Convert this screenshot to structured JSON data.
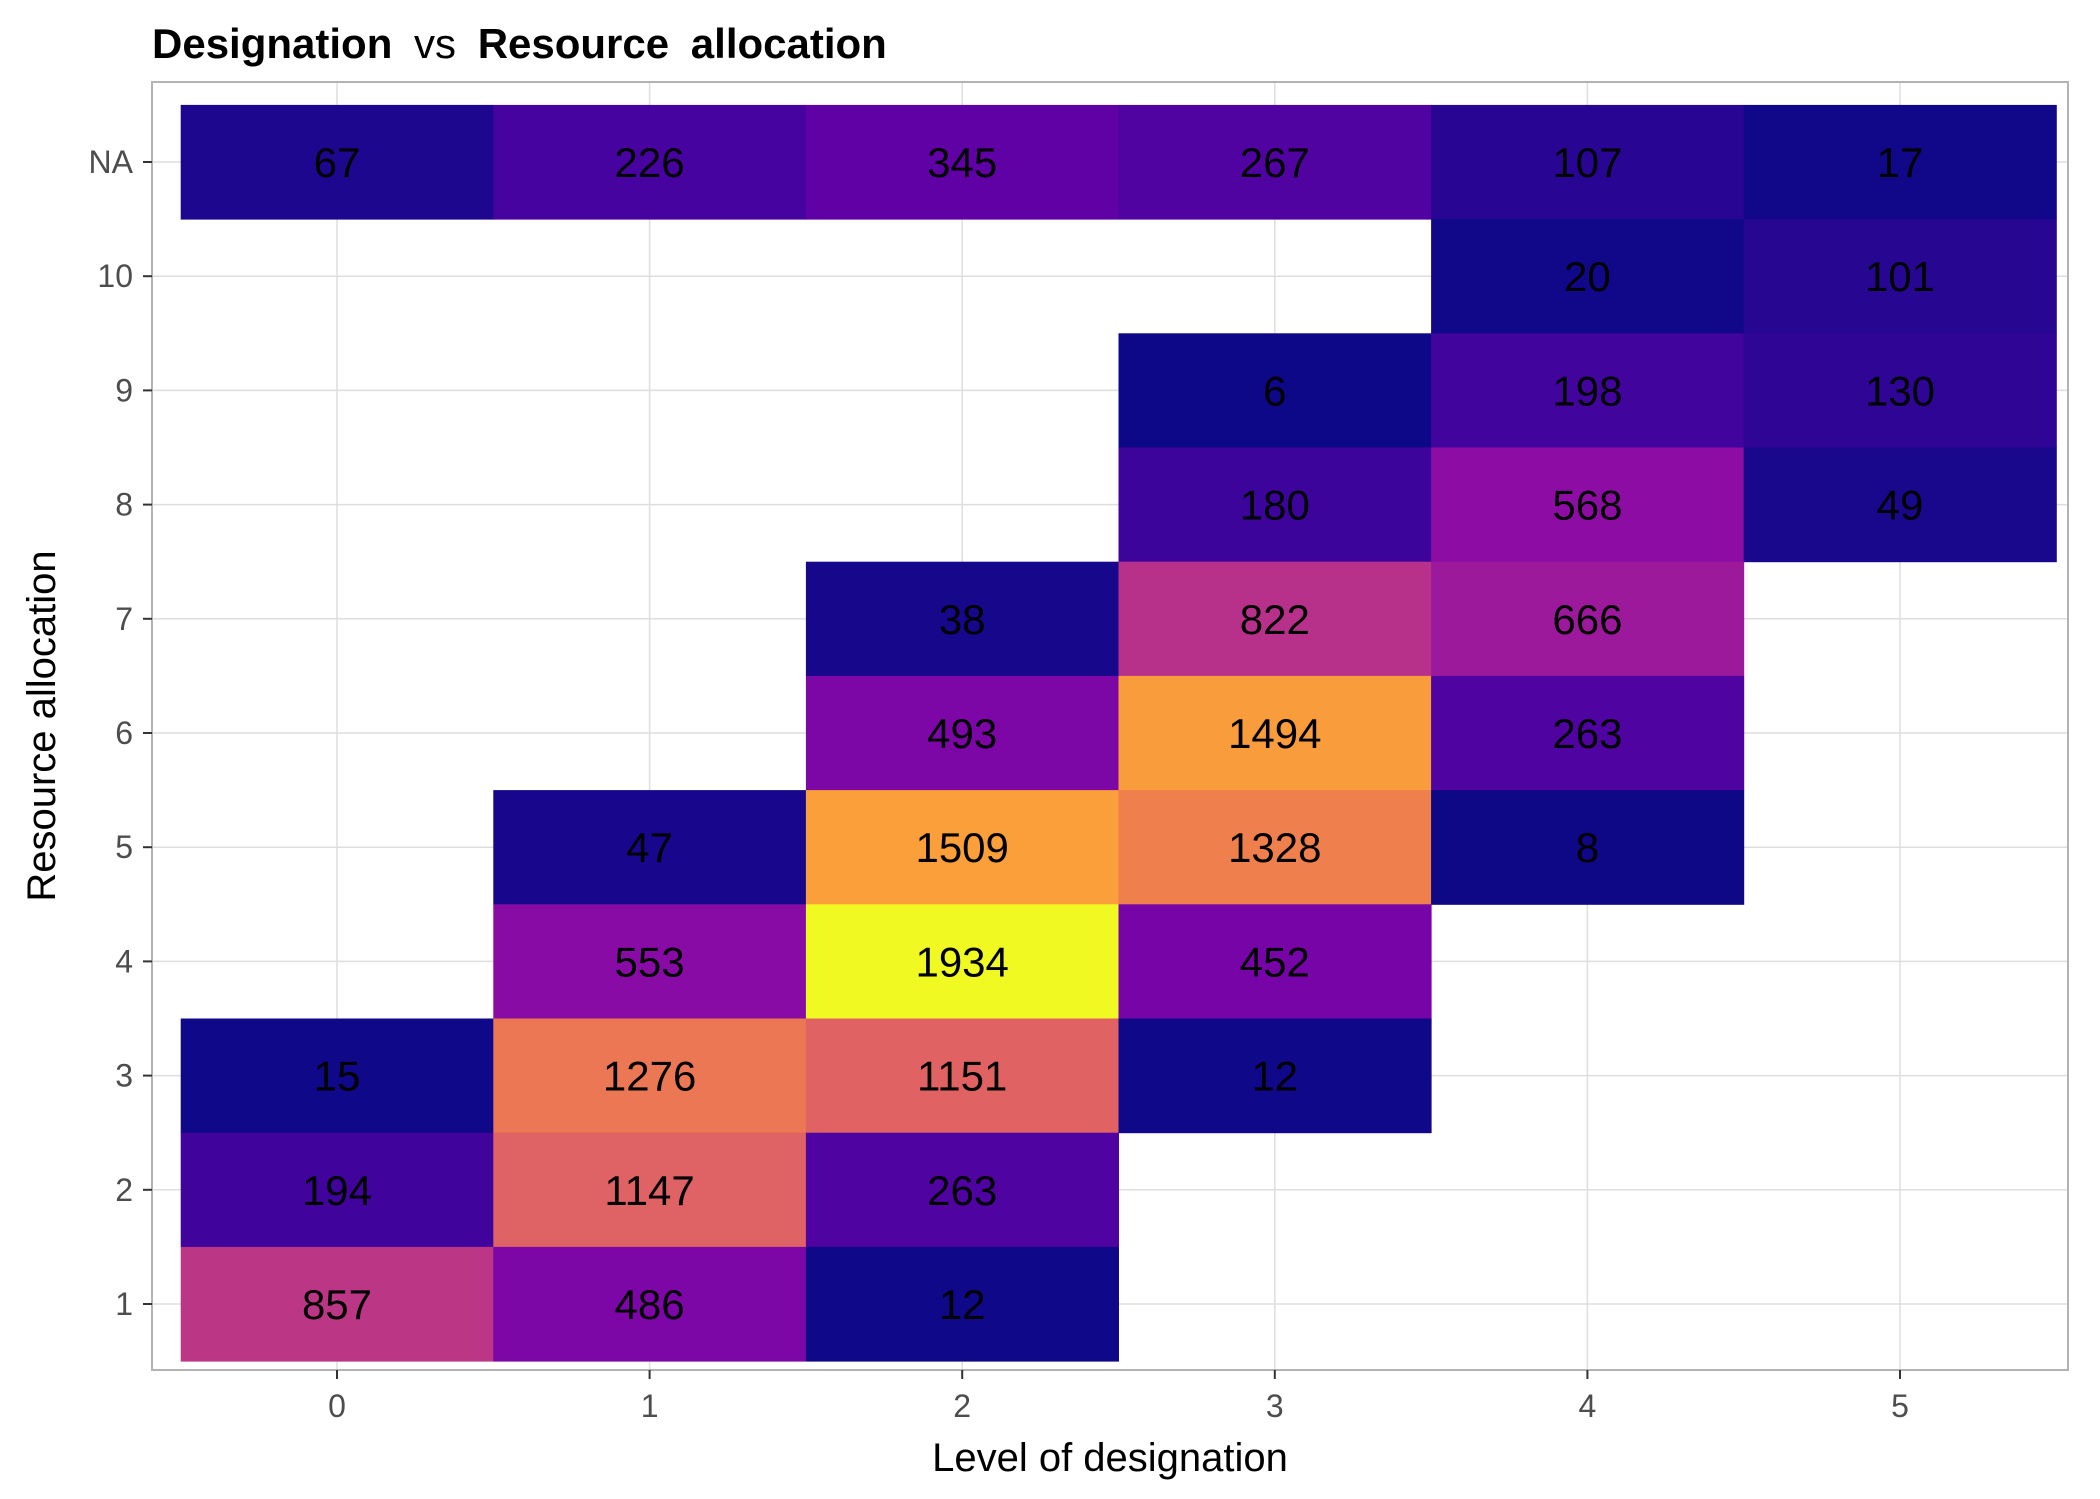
{
  "chart_data": {
    "type": "heatmap",
    "title_parts": [
      "Designation",
      "vs",
      "Resource",
      "allocation"
    ],
    "xlabel": "Level of designation",
    "ylabel": "Resource allocation",
    "x_categories": [
      "0",
      "1",
      "2",
      "3",
      "4",
      "5"
    ],
    "y_categories": [
      "1",
      "2",
      "3",
      "4",
      "5",
      "6",
      "7",
      "8",
      "9",
      "10",
      "NA"
    ],
    "grid": true,
    "legend": "none",
    "color_scale": "plasma",
    "value_range": [
      6,
      1934
    ],
    "cells": [
      {
        "x": "0",
        "y": "NA",
        "value": 67
      },
      {
        "x": "1",
        "y": "NA",
        "value": 226
      },
      {
        "x": "2",
        "y": "NA",
        "value": 345
      },
      {
        "x": "3",
        "y": "NA",
        "value": 267
      },
      {
        "x": "4",
        "y": "NA",
        "value": 107
      },
      {
        "x": "5",
        "y": "NA",
        "value": 17
      },
      {
        "x": "4",
        "y": "10",
        "value": 20
      },
      {
        "x": "5",
        "y": "10",
        "value": 101
      },
      {
        "x": "3",
        "y": "9",
        "value": 6
      },
      {
        "x": "4",
        "y": "9",
        "value": 198
      },
      {
        "x": "5",
        "y": "9",
        "value": 130
      },
      {
        "x": "3",
        "y": "8",
        "value": 180
      },
      {
        "x": "4",
        "y": "8",
        "value": 568
      },
      {
        "x": "5",
        "y": "8",
        "value": 49
      },
      {
        "x": "2",
        "y": "7",
        "value": 38
      },
      {
        "x": "3",
        "y": "7",
        "value": 822
      },
      {
        "x": "4",
        "y": "7",
        "value": 666
      },
      {
        "x": "2",
        "y": "6",
        "value": 493
      },
      {
        "x": "3",
        "y": "6",
        "value": 1494
      },
      {
        "x": "4",
        "y": "6",
        "value": 263
      },
      {
        "x": "1",
        "y": "5",
        "value": 47
      },
      {
        "x": "2",
        "y": "5",
        "value": 1509
      },
      {
        "x": "3",
        "y": "5",
        "value": 1328
      },
      {
        "x": "4",
        "y": "5",
        "value": 8
      },
      {
        "x": "1",
        "y": "4",
        "value": 553
      },
      {
        "x": "2",
        "y": "4",
        "value": 1934
      },
      {
        "x": "3",
        "y": "4",
        "value": 452
      },
      {
        "x": "0",
        "y": "3",
        "value": 15
      },
      {
        "x": "1",
        "y": "3",
        "value": 1276
      },
      {
        "x": "2",
        "y": "3",
        "value": 1151
      },
      {
        "x": "3",
        "y": "3",
        "value": 12
      },
      {
        "x": "0",
        "y": "2",
        "value": 194
      },
      {
        "x": "1",
        "y": "2",
        "value": 1147
      },
      {
        "x": "2",
        "y": "2",
        "value": 263
      },
      {
        "x": "0",
        "y": "1",
        "value": 857
      },
      {
        "x": "1",
        "y": "1",
        "value": 486
      },
      {
        "x": "2",
        "y": "1",
        "value": 12
      }
    ]
  }
}
